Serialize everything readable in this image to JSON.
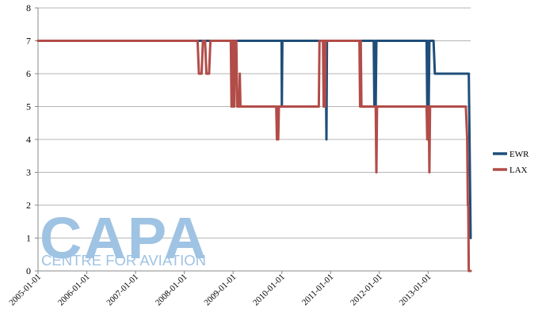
{
  "watermark": {
    "main": "CAPA",
    "sub": "CENTRE FOR AVIATION"
  },
  "chart_data": {
    "type": "line",
    "title": "",
    "xlabel": "",
    "ylabel": "",
    "x_range": [
      "2005-01-01",
      "2013-11-15"
    ],
    "ylim": [
      0,
      8
    ],
    "yticks": [
      0,
      1,
      2,
      3,
      4,
      5,
      6,
      7,
      8
    ],
    "xticks": [
      "2005-01-01",
      "2006-01-01",
      "2007-01-01",
      "2008-01-01",
      "2009-01-01",
      "2010-01-01",
      "2011-01-01",
      "2012-01-01",
      "2013-01-01"
    ],
    "grid": "horizontal",
    "legend_position": "right",
    "series": [
      {
        "name": "EWR",
        "color": "#1f4e79",
        "points": [
          [
            "2005-01-01",
            7
          ],
          [
            "2009-12-30",
            7
          ],
          [
            "2010-01-01",
            5
          ],
          [
            "2010-01-05",
            7
          ],
          [
            "2010-11-25",
            7
          ],
          [
            "2010-12-01",
            4
          ],
          [
            "2010-12-05",
            7
          ],
          [
            "2011-11-20",
            7
          ],
          [
            "2011-11-25",
            5
          ],
          [
            "2011-12-01",
            7
          ],
          [
            "2011-12-05",
            5
          ],
          [
            "2011-12-10",
            7
          ],
          [
            "2012-12-20",
            7
          ],
          [
            "2012-12-25",
            5
          ],
          [
            "2012-12-30",
            7
          ],
          [
            "2013-01-05",
            5
          ],
          [
            "2013-01-10",
            7
          ],
          [
            "2013-02-10",
            7
          ],
          [
            "2013-02-20",
            6
          ],
          [
            "2013-11-01",
            6
          ],
          [
            "2013-11-15",
            1
          ]
        ]
      },
      {
        "name": "LAX",
        "color": "#b24c48",
        "points": [
          [
            "2005-01-01",
            7
          ],
          [
            "2008-04-10",
            7
          ],
          [
            "2008-04-20",
            6
          ],
          [
            "2008-05-10",
            6
          ],
          [
            "2008-05-20",
            7
          ],
          [
            "2008-06-05",
            7
          ],
          [
            "2008-06-15",
            6
          ],
          [
            "2008-07-05",
            6
          ],
          [
            "2008-07-15",
            7
          ],
          [
            "2008-12-15",
            7
          ],
          [
            "2008-12-20",
            5
          ],
          [
            "2008-12-25",
            7
          ],
          [
            "2008-12-30",
            5
          ],
          [
            "2009-01-05",
            7
          ],
          [
            "2009-01-10",
            5
          ],
          [
            "2009-01-15",
            7
          ],
          [
            "2009-01-25",
            7
          ],
          [
            "2009-02-01",
            5
          ],
          [
            "2009-02-15",
            5
          ],
          [
            "2009-02-20",
            6
          ],
          [
            "2009-02-25",
            5
          ],
          [
            "2009-11-20",
            5
          ],
          [
            "2009-11-25",
            4
          ],
          [
            "2009-12-01",
            5
          ],
          [
            "2009-12-05",
            4
          ],
          [
            "2009-12-10",
            5
          ],
          [
            "2010-10-05",
            5
          ],
          [
            "2010-10-10",
            7
          ],
          [
            "2010-11-05",
            7
          ],
          [
            "2010-11-10",
            5
          ],
          [
            "2010-11-15",
            7
          ],
          [
            "2010-11-20",
            5
          ],
          [
            "2010-11-25",
            7
          ],
          [
            "2011-08-05",
            7
          ],
          [
            "2011-08-10",
            5
          ],
          [
            "2011-08-15",
            7
          ],
          [
            "2011-08-20",
            5
          ],
          [
            "2011-12-05",
            5
          ],
          [
            "2011-12-10",
            3
          ],
          [
            "2011-12-15",
            5
          ],
          [
            "2012-12-20",
            5
          ],
          [
            "2012-12-25",
            4
          ],
          [
            "2012-12-30",
            5
          ],
          [
            "2013-01-05",
            5
          ],
          [
            "2013-01-10",
            3
          ],
          [
            "2013-01-15",
            5
          ],
          [
            "2013-10-10",
            5
          ],
          [
            "2013-10-20",
            4
          ],
          [
            "2013-10-25",
            2
          ],
          [
            "2013-10-28",
            2
          ],
          [
            "2013-11-01",
            0
          ],
          [
            "2013-11-15",
            0
          ]
        ]
      }
    ]
  }
}
